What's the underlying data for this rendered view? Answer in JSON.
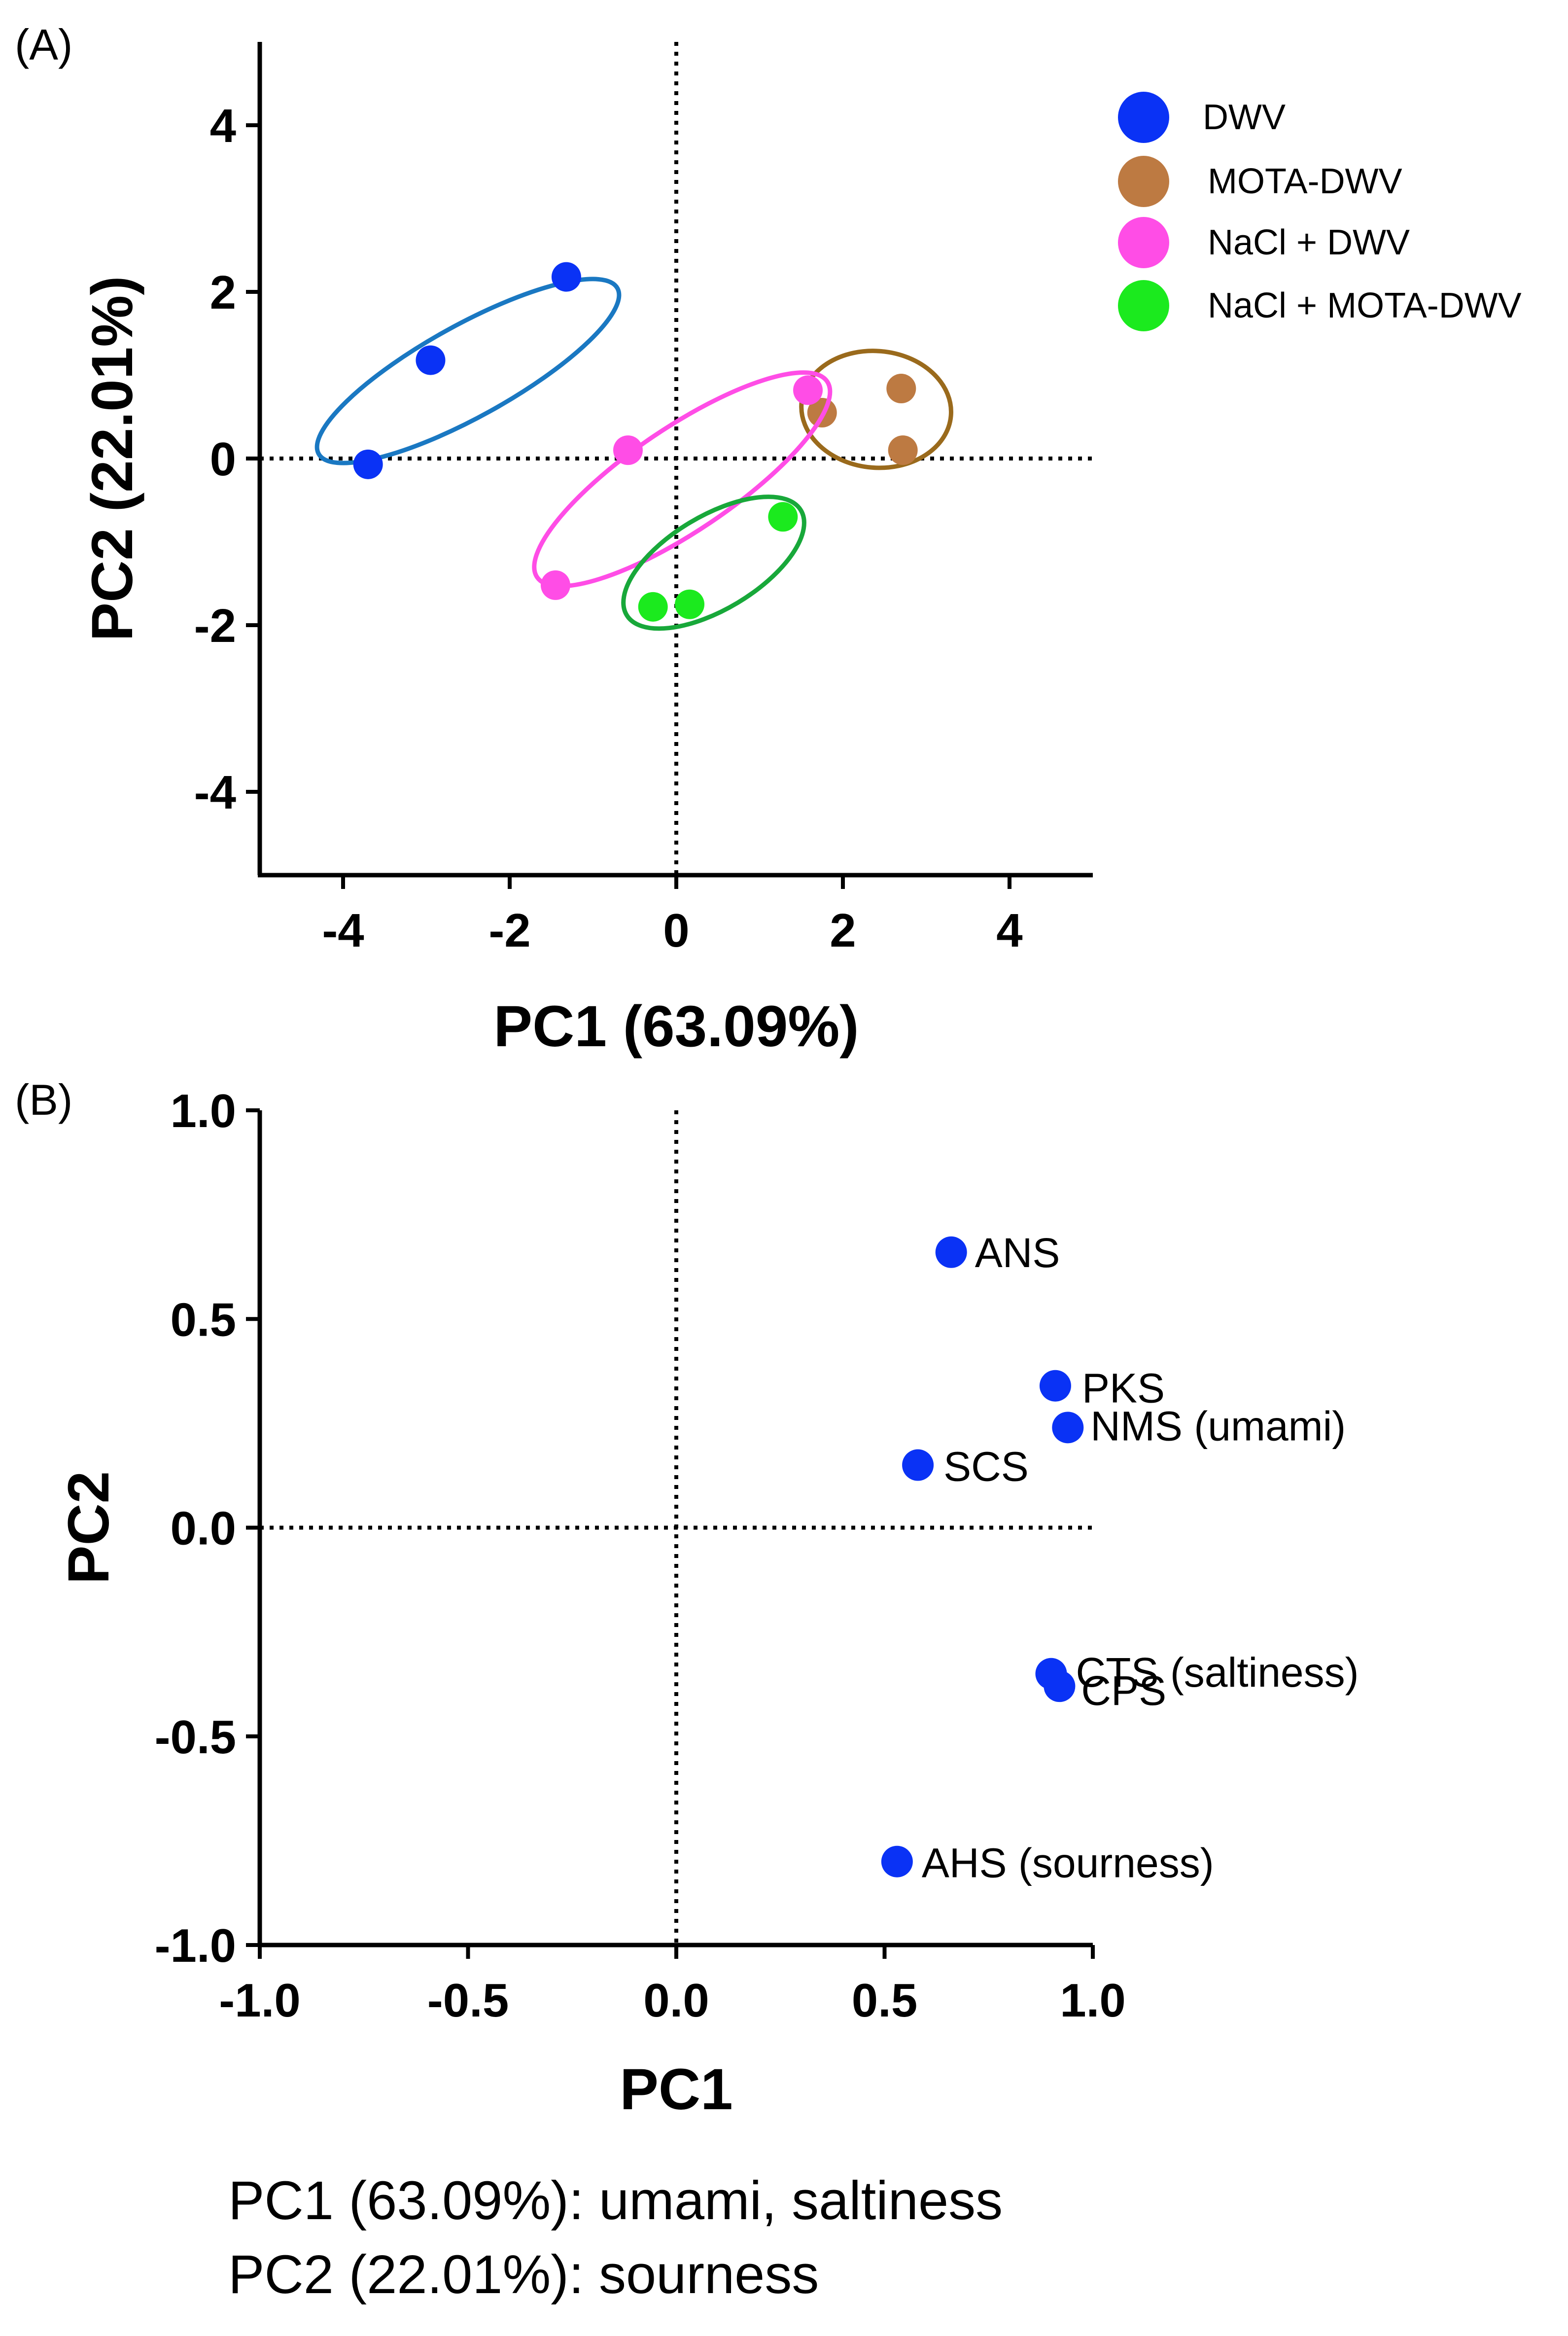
{
  "figure": {
    "panel_a_tag": "(A)",
    "panel_b_tag": "(B)",
    "caption_lines": [
      "PC1 (63.09%): umami, saltiness",
      "PC2 (22.01%): sourness"
    ]
  },
  "chart_data": [
    {
      "type": "scatter",
      "panel": "(A)",
      "xlabel": "PC1 (63.09%)",
      "ylabel": "PC2 (22.01%)",
      "xlim": [
        -5,
        5
      ],
      "ylim": [
        -5,
        5
      ],
      "xticks": [
        -4,
        -2,
        0,
        2,
        4
      ],
      "yticks": [
        -4,
        -2,
        0,
        2,
        4
      ],
      "xtick_labels": [
        "-4",
        "-2",
        "0",
        "2",
        "4"
      ],
      "ytick_labels": [
        "-4",
        "-2",
        "0",
        "2",
        "4"
      ],
      "reference_lines": {
        "x": 0,
        "y": 0,
        "style": "dotted"
      },
      "legend_position": "top-right",
      "series": [
        {
          "name": "DWV",
          "color": "#0a32f5",
          "points": [
            [
              -3.7,
              -0.07
            ],
            [
              -2.95,
              1.18
            ],
            [
              -1.32,
              2.18
            ]
          ],
          "ellipse": {
            "center": [
              -2.5,
              1.05
            ],
            "rx": 2.05,
            "ry": 0.55,
            "angle_deg": 29,
            "color": "#1a78c2"
          }
        },
        {
          "name": "MOTA-DWV",
          "color": "#bd7a42",
          "points": [
            [
              1.75,
              0.55
            ],
            [
              2.7,
              0.84
            ],
            [
              2.72,
              0.1
            ]
          ],
          "ellipse": {
            "center": [
              2.4,
              0.59
            ],
            "rx": 0.9,
            "ry": 0.7,
            "angle_deg": -5,
            "color": "#9a6a1c"
          }
        },
        {
          "name": "NaCl + DWV",
          "color": "#ff4de6",
          "points": [
            [
              -1.45,
              -1.52
            ],
            [
              -0.58,
              0.1
            ],
            [
              1.58,
              0.82
            ]
          ],
          "ellipse": {
            "center": [
              0.07,
              -0.25
            ],
            "rx": 2.1,
            "ry": 0.62,
            "angle_deg": 34,
            "color": "#ff4de6"
          }
        },
        {
          "name": "NaCl  + MOTA-DWV",
          "color": "#1bea1e",
          "points": [
            [
              -0.28,
              -1.78
            ],
            [
              0.16,
              -1.75
            ],
            [
              1.28,
              -0.7
            ]
          ],
          "ellipse": {
            "center": [
              0.45,
              -1.25
            ],
            "rx": 1.22,
            "ry": 0.56,
            "angle_deg": 31,
            "color": "#18a83a"
          }
        }
      ]
    },
    {
      "type": "scatter",
      "panel": "(B)",
      "xlabel": "PC1",
      "ylabel": "PC2",
      "xlim": [
        -1.0,
        1.0
      ],
      "ylim": [
        -1.0,
        1.0
      ],
      "xticks": [
        -1.0,
        -0.5,
        0.0,
        0.5,
        1.0
      ],
      "yticks": [
        -1.0,
        -0.5,
        0.0,
        0.5,
        1.0
      ],
      "xtick_labels": [
        "-1.0",
        "-0.5",
        "0.0",
        "0.5",
        "1.0"
      ],
      "ytick_labels": [
        "-1.0",
        "-0.5",
        "0.0",
        "0.5",
        "1.0"
      ],
      "reference_lines": {
        "x": 0,
        "y": 0,
        "style": "dotted"
      },
      "color": "#0a32f5",
      "points": [
        {
          "label": "ANS",
          "x": 0.66,
          "y": 0.66
        },
        {
          "label": "PKS",
          "x": 0.91,
          "y": 0.34
        },
        {
          "label": "NMS (umami)",
          "x": 0.94,
          "y": 0.24
        },
        {
          "label": "SCS",
          "x": 0.58,
          "y": 0.15
        },
        {
          "label": "CTS (saltiness)",
          "x": 0.9,
          "y": -0.35
        },
        {
          "label": "CPS",
          "x": 0.92,
          "y": -0.38
        },
        {
          "label": "AHS (sourness)",
          "x": 0.53,
          "y": -0.8
        }
      ]
    }
  ]
}
